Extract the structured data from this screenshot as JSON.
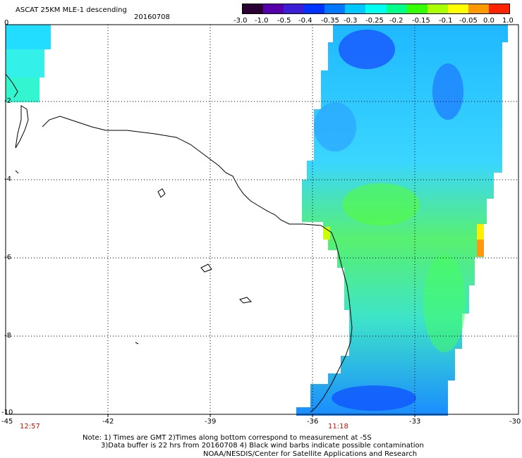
{
  "header": {
    "title": "ASCAT 25KM MLE-1 descending",
    "date": "20160708"
  },
  "colorbar": {
    "labels": [
      "-3.0",
      "-1.0",
      "-0.5",
      "-0.4",
      "-0.35",
      "-0.3",
      "-0.25",
      "-0.2",
      "-0.15",
      "-0.1",
      "-0.05",
      "0.0",
      "1.0"
    ],
    "colors": [
      "#2a0033",
      "#5500aa",
      "#3a1fd6",
      "#0033ff",
      "#0077ff",
      "#00c8ff",
      "#00ffee",
      "#00ff88",
      "#33ff00",
      "#aaff00",
      "#ffff00",
      "#ff9900",
      "#ff2200"
    ]
  },
  "axes": {
    "x_ticks": [
      "-45",
      "-42",
      "-39",
      "-36",
      "-33",
      "-30"
    ],
    "y_ticks": [
      "0",
      "-2",
      "-4",
      "-6",
      "-8",
      "-10"
    ]
  },
  "times": [
    "12:57",
    "11:18"
  ],
  "notes": [
    "Note: 1) Times are GMT 2)Times along bottom correspond to measurement at -5S",
    "3)Data buffer is 22 hrs from 20160708 4) Black wind barbs indicate possible contamination",
    "NOAA/NESDIS/Center for Satellite Applications and Research"
  ]
}
